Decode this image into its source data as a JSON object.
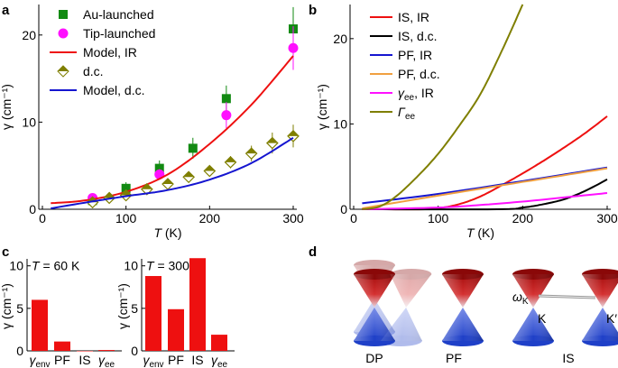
{
  "colors": {
    "green": "#128a12",
    "magenta": "#ff10ff",
    "red": "#ee1010",
    "olive": "#7f7f00",
    "blue": "#1515d0",
    "black": "#000000",
    "orange": "#f0a040"
  },
  "chart_data": [
    {
      "panel": "a",
      "type": "scatter",
      "xlabel_sym": "T",
      "xlabel_unit": " (K)",
      "ylabel": "γ (cm⁻¹)",
      "xlim": [
        0,
        300
      ],
      "ylim": [
        0,
        23.5
      ],
      "xticks": [
        0,
        100,
        200,
        300
      ],
      "yticks": [
        0,
        10,
        20
      ],
      "series": [
        {
          "name": "Au-launched",
          "kind": "square",
          "color": "green",
          "x": [
            60,
            100,
            140,
            180,
            220,
            300
          ],
          "y": [
            1.0,
            2.4,
            4.7,
            7.0,
            12.7,
            20.7
          ],
          "err": [
            0.3,
            0.7,
            0.9,
            1.2,
            1.5,
            2.5
          ]
        },
        {
          "name": "Tip-launched",
          "kind": "circle",
          "color": "magenta",
          "x": [
            60,
            140,
            220,
            300
          ],
          "y": [
            1.3,
            4.0,
            10.8,
            18.5
          ],
          "err": [
            0.2,
            0.6,
            1.5,
            2.5
          ]
        },
        {
          "name": "Model, IR",
          "kind": "line",
          "color": "red",
          "x": [
            10,
            50,
            100,
            150,
            200,
            250,
            300
          ],
          "y": [
            0.7,
            1.0,
            2.0,
            4.0,
            7.5,
            12.0,
            17.6
          ]
        },
        {
          "name": "d.c.",
          "kind": "diamond",
          "color": "olive",
          "x": [
            60,
            80,
            100,
            125,
            150,
            175,
            200,
            225,
            250,
            275,
            300
          ],
          "y": [
            0.8,
            1.3,
            1.6,
            2.3,
            2.9,
            3.7,
            4.4,
            5.4,
            6.4,
            7.6,
            8.4
          ],
          "err": [
            0.2,
            0.2,
            0.3,
            0.3,
            0.3,
            0.4,
            0.6,
            0.7,
            0.9,
            1.2,
            1.3
          ]
        },
        {
          "name": "Model, d.c.",
          "kind": "line",
          "color": "blue",
          "x": [
            10,
            60,
            100,
            150,
            200,
            250,
            300
          ],
          "y": [
            0.1,
            0.9,
            1.5,
            2.2,
            3.4,
            5.3,
            8.2
          ]
        }
      ]
    },
    {
      "panel": "b",
      "type": "line",
      "xlabel_sym": "T",
      "xlabel_unit": " (K)",
      "ylabel": "γ (cm⁻¹)",
      "xlim": [
        0,
        300
      ],
      "ylim": [
        0,
        24
      ],
      "xticks": [
        0,
        100,
        200,
        300
      ],
      "yticks": [
        0,
        10,
        20
      ],
      "series": [
        {
          "name": "IS, IR",
          "color": "red",
          "x": [
            10,
            90,
            100,
            125,
            150,
            175,
            200,
            225,
            250,
            275,
            300
          ],
          "y": [
            0,
            0,
            0.1,
            0.6,
            1.5,
            2.8,
            4.2,
            5.7,
            7.3,
            9.0,
            10.9
          ]
        },
        {
          "name": "IS, d.c.",
          "color": "black",
          "x": [
            10,
            170,
            200,
            225,
            250,
            275,
            300
          ],
          "y": [
            0,
            0,
            0.2,
            0.6,
            1.2,
            2.2,
            3.5
          ]
        },
        {
          "name": "PF, IR",
          "color": "blue",
          "x": [
            10,
            100,
            200,
            300
          ],
          "y": [
            0.7,
            1.8,
            3.3,
            4.9
          ]
        },
        {
          "name": "PF, d.c.",
          "color": "orange",
          "x": [
            10,
            100,
            200,
            300
          ],
          "y": [
            0.1,
            1.6,
            3.2,
            4.8
          ]
        },
        {
          "name": "γee, IR",
          "name_base": "γ",
          "name_sub": "ee",
          "name_rest": ", IR",
          "color": "magenta",
          "x": [
            10,
            100,
            150,
            200,
            250,
            300
          ],
          "y": [
            0,
            0.2,
            0.5,
            0.9,
            1.4,
            1.9
          ]
        },
        {
          "name": "Γee",
          "name_base": "Γ",
          "name_sub": "ee",
          "name_rest": "",
          "color": "olive",
          "x": [
            10,
            30,
            50,
            75,
            100,
            125,
            150,
            175,
            200
          ],
          "y": [
            0,
            0.3,
            1.5,
            3.8,
            6.5,
            9.8,
            13.5,
            18.5,
            24
          ]
        }
      ]
    },
    {
      "panel": "c",
      "type": "bar",
      "title_sym": "T",
      "title_rest": " = 60 K",
      "ylabel": "γ (cm⁻¹)",
      "ylim": [
        0,
        10.5
      ],
      "yticks": [
        0,
        5,
        10
      ],
      "categories": [
        {
          "base": "γ",
          "sub": "env"
        },
        {
          "base": "PF",
          "sub": ""
        },
        {
          "base": "IS",
          "sub": ""
        },
        {
          "base": "γ",
          "sub": "ee"
        }
      ],
      "values": [
        6.0,
        1.1,
        0,
        0.1
      ],
      "color": "red"
    },
    {
      "panel": "c",
      "type": "bar",
      "title_sym": "T",
      "title_rest": " = 300 K",
      "ylabel": "γ (cm⁻¹)",
      "ylim": [
        0,
        10.5
      ],
      "yticks": [
        0,
        5,
        10
      ],
      "categories": [
        {
          "base": "γ",
          "sub": "env"
        },
        {
          "base": "PF",
          "sub": ""
        },
        {
          "base": "IS",
          "sub": ""
        },
        {
          "base": "γ",
          "sub": "ee"
        }
      ],
      "values": [
        8.8,
        4.9,
        10.9,
        1.9
      ],
      "color": "red"
    }
  ],
  "panel_d": {
    "labels": [
      "DP",
      "PF",
      "IS"
    ],
    "omega_base": "ω",
    "omega_sub": "K",
    "k": "K",
    "kprime": "K′"
  },
  "panel_labels": [
    "a",
    "b",
    "c",
    "d"
  ]
}
